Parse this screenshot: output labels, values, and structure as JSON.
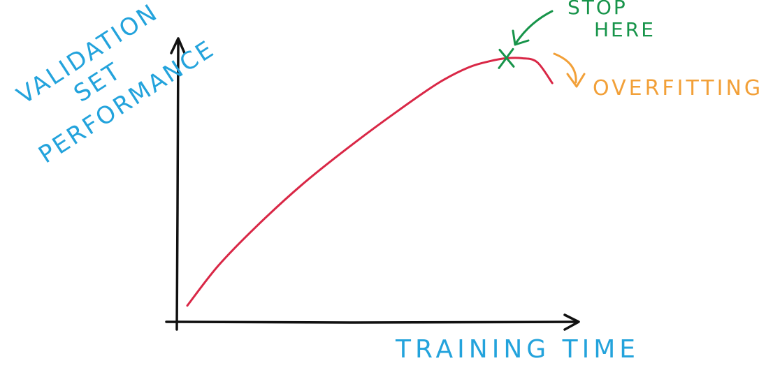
{
  "chart_data": {
    "type": "line",
    "xlabel": "TRAINING TIME",
    "ylabel_lines": [
      "VALIDATION",
      "SET",
      "PERFORMANCE"
    ],
    "xlim": [
      0,
      100
    ],
    "ylim": [
      0,
      100
    ],
    "grid": false,
    "series": [
      {
        "values_x": [
          0,
          8,
          18,
          30,
          42,
          55,
          66,
          74,
          80,
          84,
          88,
          92,
          96
        ],
        "values_y": [
          3,
          18,
          33,
          49,
          63,
          77,
          88,
          94,
          96.5,
          97.5,
          97.5,
          96,
          88
        ],
        "color": "#d92746"
      }
    ],
    "annotations": [
      {
        "label_lines": [
          "STOP",
          "HERE"
        ],
        "target_x": 84,
        "target_y": 97.5,
        "color": "#17944a"
      },
      {
        "label": "OVERFITTING",
        "target_x": 95,
        "target_y": 92,
        "color": "#f2a038"
      }
    ]
  }
}
